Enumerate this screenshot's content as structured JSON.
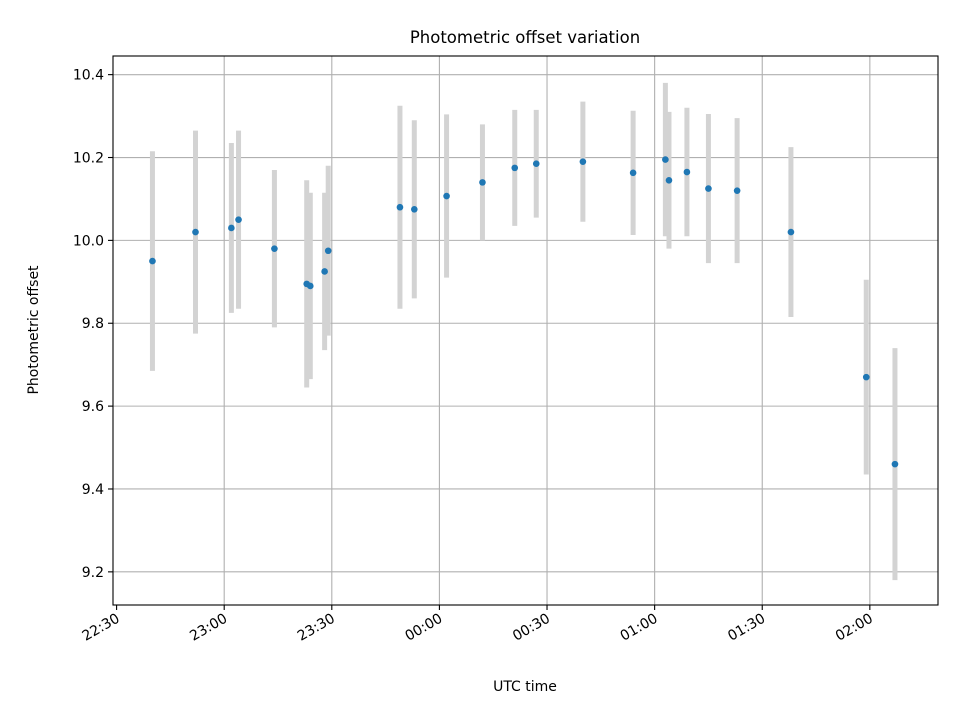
{
  "chart_data": {
    "type": "scatter",
    "title": "Photometric offset variation",
    "xlabel": "UTC time",
    "ylabel": "Photometric offset",
    "x_ticks": [
      "22:30",
      "23:00",
      "23:30",
      "00:00",
      "00:30",
      "01:00",
      "01:30",
      "02:00"
    ],
    "y_ticks": [
      "9.2",
      "9.4",
      "9.6",
      "9.8",
      "10.0",
      "10.2",
      "10.4"
    ],
    "xlim": [
      "22:29",
      "02:19"
    ],
    "ylim": [
      9.12,
      10.445
    ],
    "grid": true,
    "point_color": "#1f77b4",
    "errorbar_color": "#d3d3d3",
    "points": [
      {
        "x": "22:40",
        "y": 9.95,
        "err": 0.265
      },
      {
        "x": "22:52",
        "y": 10.02,
        "err": 0.245
      },
      {
        "x": "23:02",
        "y": 10.03,
        "err": 0.205
      },
      {
        "x": "23:04",
        "y": 10.05,
        "err": 0.215
      },
      {
        "x": "23:14",
        "y": 9.98,
        "err": 0.19
      },
      {
        "x": "23:23",
        "y": 9.895,
        "err": 0.25
      },
      {
        "x": "23:24",
        "y": 9.89,
        "err": 0.225
      },
      {
        "x": "23:28",
        "y": 9.925,
        "err": 0.19
      },
      {
        "x": "23:29",
        "y": 9.975,
        "err": 0.205
      },
      {
        "x": "23:49",
        "y": 10.08,
        "err": 0.245
      },
      {
        "x": "23:53",
        "y": 10.075,
        "err": 0.215
      },
      {
        "x": "00:02",
        "y": 10.107,
        "err": 0.197
      },
      {
        "x": "00:12",
        "y": 10.14,
        "err": 0.14
      },
      {
        "x": "00:21",
        "y": 10.175,
        "err": 0.14
      },
      {
        "x": "00:27",
        "y": 10.185,
        "err": 0.13
      },
      {
        "x": "00:40",
        "y": 10.19,
        "err": 0.145
      },
      {
        "x": "00:54",
        "y": 10.163,
        "err": 0.15
      },
      {
        "x": "01:03",
        "y": 10.195,
        "err": 0.185
      },
      {
        "x": "01:04",
        "y": 10.145,
        "err": 0.165
      },
      {
        "x": "01:09",
        "y": 10.165,
        "err": 0.155
      },
      {
        "x": "01:15",
        "y": 10.125,
        "err": 0.18
      },
      {
        "x": "01:23",
        "y": 10.12,
        "err": 0.175
      },
      {
        "x": "01:38",
        "y": 10.02,
        "err": 0.205
      },
      {
        "x": "01:59",
        "y": 9.67,
        "err": 0.235
      },
      {
        "x": "02:07",
        "y": 9.46,
        "err": 0.28
      }
    ]
  }
}
